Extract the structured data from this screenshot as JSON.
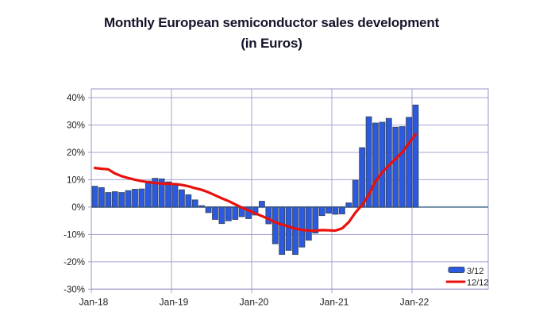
{
  "title": {
    "line1": "Monthly European semiconductor sales development",
    "line2": "(in Euros)"
  },
  "chart_data": {
    "type": "bar+line",
    "categories": [
      "Jan-18",
      "Feb-18",
      "Mar-18",
      "Apr-18",
      "May-18",
      "Jun-18",
      "Jul-18",
      "Aug-18",
      "Sep-18",
      "Oct-18",
      "Nov-18",
      "Dec-18",
      "Jan-19",
      "Feb-19",
      "Mar-19",
      "Apr-19",
      "May-19",
      "Jun-19",
      "Jul-19",
      "Aug-19",
      "Sep-19",
      "Oct-19",
      "Nov-19",
      "Dec-19",
      "Jan-20",
      "Feb-20",
      "Mar-20",
      "Apr-20",
      "May-20",
      "Jun-20",
      "Jul-20",
      "Aug-20",
      "Sep-20",
      "Oct-20",
      "Nov-20",
      "Dec-20",
      "Jan-21",
      "Feb-21",
      "Mar-21",
      "Apr-21",
      "May-21",
      "Jun-21",
      "Jul-21",
      "Aug-21",
      "Sep-21",
      "Oct-21",
      "Nov-21",
      "Dec-21",
      "Jan-22"
    ],
    "series": [
      {
        "name": "3/12",
        "type": "bar",
        "color": "#2b59e0",
        "values": [
          7.6,
          7.1,
          5.3,
          5.6,
          5.3,
          6.0,
          6.5,
          6.6,
          9.5,
          10.5,
          10.3,
          9.2,
          8.6,
          6.3,
          4.5,
          2.6,
          0.5,
          -2.0,
          -4.5,
          -6.0,
          -5.0,
          -4.5,
          -3.5,
          -4.2,
          -2.9,
          2.1,
          -6.1,
          -13.4,
          -17.3,
          -15.8,
          -17.3,
          -14.6,
          -12.1,
          -9.5,
          -3.1,
          -2.2,
          -2.6,
          -2.5,
          1.5,
          9.8,
          21.7,
          33.0,
          30.7,
          31.0,
          32.4,
          29.2,
          29.4,
          32.8,
          37.3
        ]
      },
      {
        "name": "12/12",
        "type": "line",
        "color": "#e8100c",
        "values": [
          14.3,
          14.0,
          13.8,
          12.3,
          11.3,
          10.6,
          10.0,
          9.5,
          9.1,
          8.8,
          8.6,
          8.5,
          8.4,
          8.1,
          7.6,
          6.9,
          6.3,
          5.4,
          4.3,
          3.2,
          2.2,
          1.0,
          -0.2,
          -1.2,
          -2.3,
          -3.3,
          -4.3,
          -5.6,
          -6.4,
          -7.1,
          -7.9,
          -8.3,
          -8.6,
          -8.6,
          -8.4,
          -8.5,
          -8.6,
          -7.8,
          -5.5,
          -2.0,
          0.8,
          4.5,
          9.4,
          12.7,
          15.2,
          17.6,
          20.0,
          23.4,
          26.6
        ]
      }
    ],
    "yticks": [
      40,
      30,
      20,
      10,
      0,
      -10,
      -20,
      -30
    ],
    "ytick_suffix": "%",
    "ylim": [
      -30,
      43.2
    ],
    "xtick_labels": [
      "Jan-18",
      "Jan-19",
      "Jan-20",
      "Jan-21",
      "Jan-22"
    ],
    "xtick_month_indices": [
      0,
      12,
      24,
      36,
      48
    ],
    "grid": true,
    "legend": {
      "position": "bottom-right",
      "items": [
        "3/12",
        "12/12"
      ]
    }
  },
  "colors": {
    "background": "#ffffff",
    "grid": "#a3a3d1",
    "plot_border": "#9595c8",
    "zero_axis": "#6d8ba3",
    "tick_text": "#222222",
    "title_text": "#14142a",
    "bar_border": "#3a4a6b"
  }
}
